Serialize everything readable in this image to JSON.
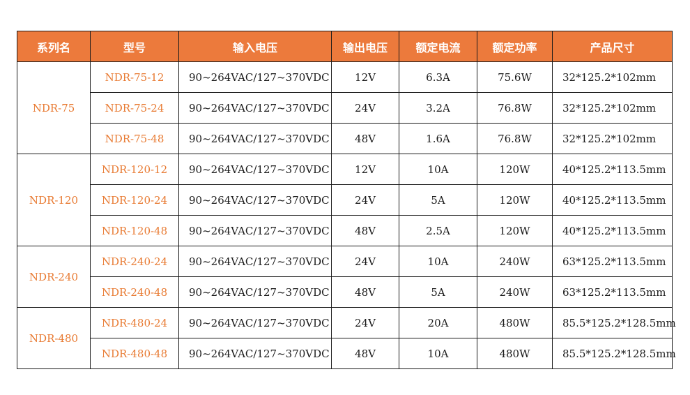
{
  "theme": {
    "header_bg": "#ec7a3c",
    "accent_text": "#e87a32",
    "border": "#1a1a1a"
  },
  "headers": [
    "系列名",
    "型号",
    "输入电压",
    "输出电压",
    "额定电流",
    "额定功率",
    "产品尺寸"
  ],
  "groups": [
    {
      "series": "NDR-75",
      "rows": [
        {
          "model": "NDR-75-12",
          "input": "90~264VAC/127~370VDC",
          "output": "12V",
          "current": "6.3A",
          "power": "75.6W",
          "size": "32*125.2*102mm"
        },
        {
          "model": "NDR-75-24",
          "input": "90~264VAC/127~370VDC",
          "output": "24V",
          "current": "3.2A",
          "power": "76.8W",
          "size": "32*125.2*102mm"
        },
        {
          "model": "NDR-75-48",
          "input": "90~264VAC/127~370VDC",
          "output": "48V",
          "current": "1.6A",
          "power": "76.8W",
          "size": "32*125.2*102mm"
        }
      ]
    },
    {
      "series": "NDR-120",
      "rows": [
        {
          "model": "NDR-120-12",
          "input": "90~264VAC/127~370VDC",
          "output": "12V",
          "current": "10A",
          "power": "120W",
          "size": "40*125.2*113.5mm"
        },
        {
          "model": "NDR-120-24",
          "input": "90~264VAC/127~370VDC",
          "output": "24V",
          "current": "5A",
          "power": "120W",
          "size": "40*125.2*113.5mm"
        },
        {
          "model": "NDR-120-48",
          "input": "90~264VAC/127~370VDC",
          "output": "48V",
          "current": "2.5A",
          "power": "120W",
          "size": "40*125.2*113.5mm"
        }
      ]
    },
    {
      "series": "NDR-240",
      "rows": [
        {
          "model": "NDR-240-24",
          "input": "90~264VAC/127~370VDC",
          "output": "24V",
          "current": "10A",
          "power": "240W",
          "size": "63*125.2*113.5mm"
        },
        {
          "model": "NDR-240-48",
          "input": "90~264VAC/127~370VDC",
          "output": "48V",
          "current": "5A",
          "power": "240W",
          "size": "63*125.2*113.5mm"
        }
      ]
    },
    {
      "series": "NDR-480",
      "rows": [
        {
          "model": "NDR-480-24",
          "input": "90~264VAC/127~370VDC",
          "output": "24V",
          "current": "20A",
          "power": "480W",
          "size": "85.5*125.2*128.5mm"
        },
        {
          "model": "NDR-480-48",
          "input": "90~264VAC/127~370VDC",
          "output": "48V",
          "current": "10A",
          "power": "480W",
          "size": "85.5*125.2*128.5mm"
        }
      ]
    }
  ]
}
